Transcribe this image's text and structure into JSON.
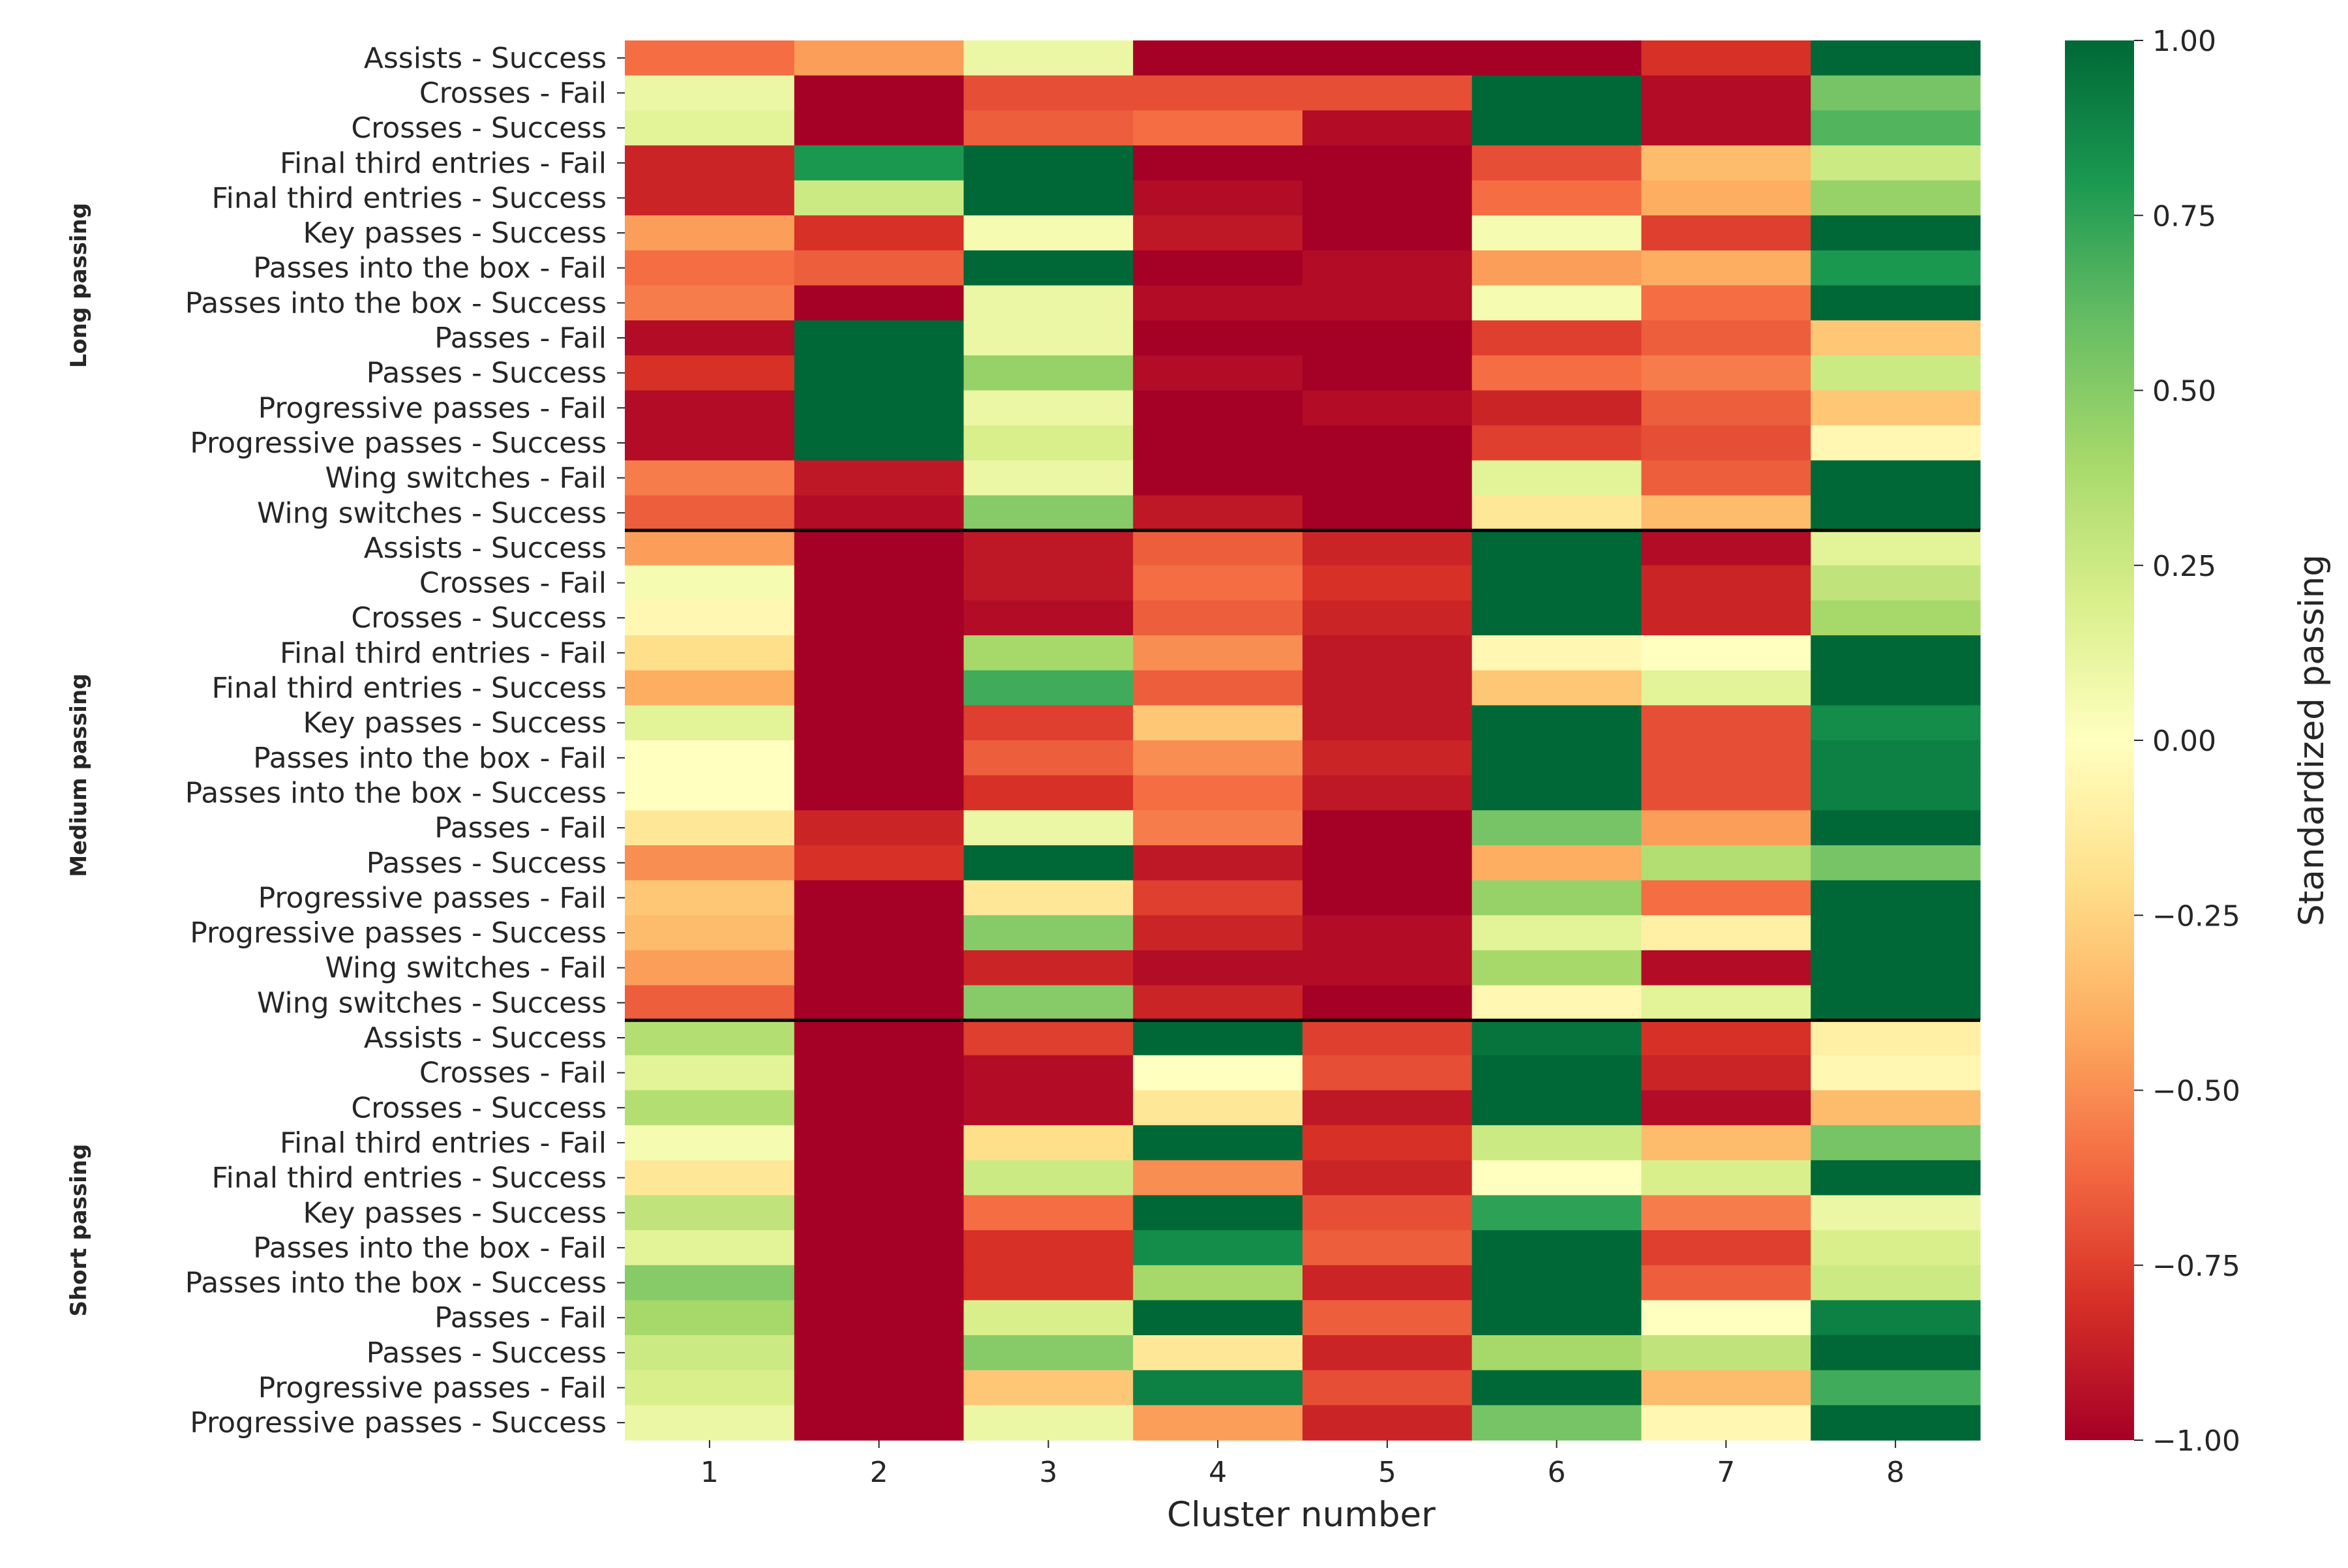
{
  "chart_data": {
    "type": "heatmap",
    "title": "",
    "xlabel": "Cluster number",
    "ylabel": "",
    "colorbar_label": "Standardized passing",
    "colormap": "RdYlGn",
    "vmin": -1.0,
    "vmax": 1.0,
    "colorbar_ticks": [
      "1.00",
      "0.75",
      "0.50",
      "0.25",
      "0.00",
      "−0.25",
      "−0.50",
      "−0.75",
      "−1.00"
    ],
    "colorbar_tick_values": [
      1.0,
      0.75,
      0.5,
      0.25,
      0.0,
      -0.25,
      -0.5,
      -0.75,
      -1.0
    ],
    "columns": [
      "1",
      "2",
      "3",
      "4",
      "5",
      "6",
      "7",
      "8"
    ],
    "groups": [
      {
        "name": "Long passing",
        "rows": [
          {
            "label": "Assists - Success",
            "values": [
              -0.6,
              -0.45,
              0.1,
              -1.0,
              -1.0,
              -1.0,
              -0.8,
              1.0
            ]
          },
          {
            "label": "Crosses - Fail",
            "values": [
              0.1,
              -1.0,
              -0.7,
              -0.7,
              -0.7,
              1.0,
              -0.95,
              0.55
            ]
          },
          {
            "label": "Crosses - Success",
            "values": [
              0.15,
              -1.0,
              -0.65,
              -0.6,
              -0.95,
              1.0,
              -0.95,
              0.65
            ]
          },
          {
            "label": "Final third entries - Fail",
            "values": [
              -0.85,
              0.8,
              1.0,
              -1.0,
              -1.0,
              -0.7,
              -0.35,
              0.25
            ]
          },
          {
            "label": "Final third entries - Success",
            "values": [
              -0.85,
              0.25,
              1.0,
              -0.95,
              -1.0,
              -0.6,
              -0.4,
              0.45
            ]
          },
          {
            "label": "Key passes - Success",
            "values": [
              -0.45,
              -0.8,
              0.05,
              -0.9,
              -1.0,
              0.05,
              -0.75,
              1.0
            ]
          },
          {
            "label": "Passes into the box - Fail",
            "values": [
              -0.6,
              -0.65,
              1.0,
              -1.0,
              -0.95,
              -0.45,
              -0.4,
              0.8
            ]
          },
          {
            "label": "Passes into the box - Success",
            "values": [
              -0.55,
              -1.0,
              0.1,
              -0.95,
              -0.95,
              0.05,
              -0.6,
              1.0
            ]
          },
          {
            "label": "Passes - Fail",
            "values": [
              -0.95,
              1.0,
              0.1,
              -1.0,
              -1.0,
              -0.75,
              -0.65,
              -0.3
            ]
          },
          {
            "label": "Passes - Success",
            "values": [
              -0.8,
              1.0,
              0.45,
              -0.95,
              -1.0,
              -0.6,
              -0.55,
              0.25
            ]
          },
          {
            "label": "Progressive passes - Fail",
            "values": [
              -0.95,
              1.0,
              0.1,
              -1.0,
              -0.95,
              -0.85,
              -0.65,
              -0.3
            ]
          },
          {
            "label": "Progressive passes - Success",
            "values": [
              -0.95,
              1.0,
              0.2,
              -1.0,
              -1.0,
              -0.75,
              -0.7,
              -0.05
            ]
          },
          {
            "label": "Wing switches - Fail",
            "values": [
              -0.55,
              -0.9,
              0.1,
              -1.0,
              -1.0,
              0.15,
              -0.65,
              1.0
            ]
          },
          {
            "label": "Wing switches - Success",
            "values": [
              -0.65,
              -0.95,
              0.5,
              -0.9,
              -1.0,
              -0.15,
              -0.35,
              1.0
            ]
          }
        ]
      },
      {
        "name": "Medium passing",
        "rows": [
          {
            "label": "Assists - Success",
            "values": [
              -0.45,
              -1.0,
              -0.9,
              -0.65,
              -0.85,
              1.0,
              -0.95,
              0.15
            ]
          },
          {
            "label": "Crosses - Fail",
            "values": [
              0.05,
              -1.0,
              -0.9,
              -0.6,
              -0.8,
              1.0,
              -0.85,
              0.3
            ]
          },
          {
            "label": "Crosses - Success",
            "values": [
              -0.05,
              -1.0,
              -0.95,
              -0.65,
              -0.85,
              1.0,
              -0.85,
              0.4
            ]
          },
          {
            "label": "Final third entries - Fail",
            "values": [
              -0.2,
              -1.0,
              0.4,
              -0.5,
              -0.9,
              -0.05,
              0.0,
              1.0
            ]
          },
          {
            "label": "Final third entries - Success",
            "values": [
              -0.4,
              -1.0,
              0.7,
              -0.65,
              -0.9,
              -0.3,
              0.15,
              1.0
            ]
          },
          {
            "label": "Key passes - Success",
            "values": [
              0.15,
              -1.0,
              -0.75,
              -0.3,
              -0.9,
              1.0,
              -0.7,
              0.85
            ]
          },
          {
            "label": "Passes into the box - Fail",
            "values": [
              0.0,
              -1.0,
              -0.65,
              -0.5,
              -0.85,
              1.0,
              -0.7,
              0.9
            ]
          },
          {
            "label": "Passes into the box - Success",
            "values": [
              0.0,
              -1.0,
              -0.8,
              -0.6,
              -0.9,
              1.0,
              -0.7,
              0.9
            ]
          },
          {
            "label": "Passes - Fail",
            "values": [
              -0.15,
              -0.85,
              0.1,
              -0.55,
              -1.0,
              0.55,
              -0.45,
              1.0
            ]
          },
          {
            "label": "Passes - Success",
            "values": [
              -0.5,
              -0.8,
              1.0,
              -0.9,
              -1.0,
              -0.4,
              0.35,
              0.55
            ]
          },
          {
            "label": "Progressive passes - Fail",
            "values": [
              -0.3,
              -1.0,
              -0.15,
              -0.75,
              -1.0,
              0.45,
              -0.6,
              1.0
            ]
          },
          {
            "label": "Progressive passes - Success",
            "values": [
              -0.35,
              -1.0,
              0.5,
              -0.85,
              -0.95,
              0.15,
              -0.1,
              1.0
            ]
          },
          {
            "label": "Wing switches - Fail",
            "values": [
              -0.45,
              -1.0,
              -0.85,
              -0.95,
              -0.95,
              0.4,
              -0.95,
              1.0
            ]
          },
          {
            "label": "Wing switches - Success",
            "values": [
              -0.65,
              -1.0,
              0.5,
              -0.85,
              -1.0,
              -0.05,
              0.15,
              1.0
            ]
          }
        ]
      },
      {
        "name": "Short passing",
        "rows": [
          {
            "label": "Assists - Success",
            "values": [
              0.35,
              -1.0,
              -0.75,
              1.0,
              -0.75,
              0.95,
              -0.8,
              -0.1
            ]
          },
          {
            "label": "Crosses - Fail",
            "values": [
              0.15,
              -1.0,
              -0.95,
              0.0,
              -0.7,
              1.0,
              -0.85,
              -0.05
            ]
          },
          {
            "label": "Crosses - Success",
            "values": [
              0.35,
              -1.0,
              -0.95,
              -0.15,
              -0.9,
              1.0,
              -0.95,
              -0.35
            ]
          },
          {
            "label": "Final third entries - Fail",
            "values": [
              0.05,
              -1.0,
              -0.2,
              1.0,
              -0.8,
              0.25,
              -0.35,
              0.55
            ]
          },
          {
            "label": "Final third entries - Success",
            "values": [
              -0.15,
              -1.0,
              0.25,
              -0.5,
              -0.85,
              0.0,
              0.2,
              1.0
            ]
          },
          {
            "label": "Key passes - Success",
            "values": [
              0.3,
              -1.0,
              -0.6,
              1.0,
              -0.7,
              0.75,
              -0.55,
              0.1
            ]
          },
          {
            "label": "Passes into the box - Fail",
            "values": [
              0.15,
              -1.0,
              -0.8,
              0.85,
              -0.65,
              1.0,
              -0.75,
              0.2
            ]
          },
          {
            "label": "Passes into the box - Success",
            "values": [
              0.5,
              -1.0,
              -0.8,
              0.4,
              -0.85,
              1.0,
              -0.65,
              0.25
            ]
          },
          {
            "label": "Passes - Fail",
            "values": [
              0.4,
              -1.0,
              0.2,
              1.0,
              -0.65,
              1.0,
              0.0,
              0.9
            ]
          },
          {
            "label": "Passes - Success",
            "values": [
              0.25,
              -1.0,
              0.5,
              -0.15,
              -0.85,
              0.4,
              0.3,
              1.0
            ]
          },
          {
            "label": "Progressive passes - Fail",
            "values": [
              0.2,
              -1.0,
              -0.3,
              0.9,
              -0.7,
              1.0,
              -0.35,
              0.7
            ]
          },
          {
            "label": "Progressive passes - Success",
            "values": [
              0.1,
              -1.0,
              0.1,
              -0.45,
              -0.85,
              0.55,
              -0.05,
              1.0
            ]
          }
        ]
      }
    ]
  }
}
